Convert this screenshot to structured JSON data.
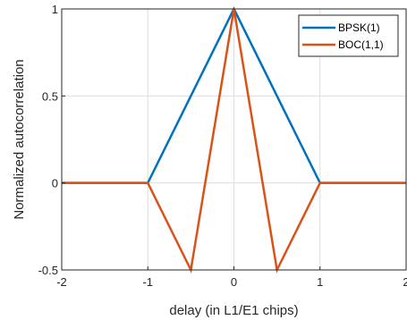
{
  "chart_data": {
    "type": "line",
    "title": "",
    "xlabel": "delay (in L1/E1 chips)",
    "ylabel": "Normalized autocorrelation",
    "xlim": [
      -2,
      2
    ],
    "ylim": [
      -0.5,
      1
    ],
    "xticks": [
      -2,
      -1,
      0,
      1,
      2
    ],
    "xtick_labels": [
      "-2",
      "-1",
      "0",
      "1",
      "2"
    ],
    "yticks": [
      -0.5,
      0,
      0.5,
      1
    ],
    "ytick_labels": [
      "-0.5",
      "0",
      "0.5",
      "1"
    ],
    "grid": true,
    "legend_position": "top-right",
    "series": [
      {
        "name": "BPSK(1)",
        "color": "#0072BD",
        "x": [
          -2,
          -1,
          0,
          1,
          2
        ],
        "y": [
          0,
          0,
          1,
          0,
          0
        ]
      },
      {
        "name": "BOC(1,1)",
        "color": "#D95319",
        "x": [
          -2,
          -1,
          -0.5,
          0,
          0.5,
          1,
          2
        ],
        "y": [
          0,
          0,
          -0.5,
          1,
          -0.5,
          0,
          0
        ]
      }
    ]
  }
}
